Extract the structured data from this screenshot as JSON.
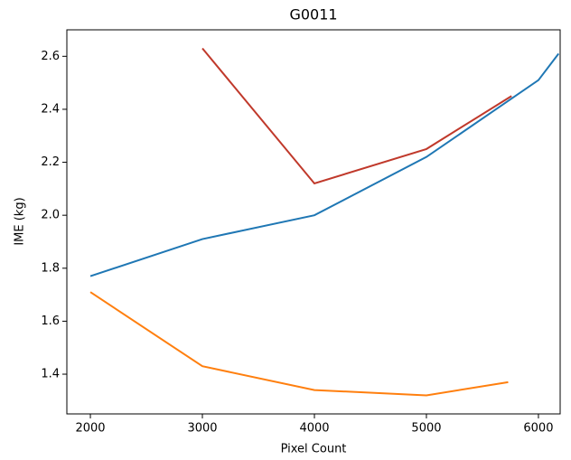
{
  "chart_data": {
    "type": "line",
    "title": "G0011",
    "x_label": "Pixel Count",
    "y_label": "IME (kg)",
    "series": [
      {
        "color": "#1f77b4",
        "x": [
          2000,
          3000,
          4000,
          5000,
          6000,
          6180
        ],
        "values": [
          1.77,
          1.91,
          2.0,
          2.22,
          2.51,
          2.61
        ]
      },
      {
        "color": "#ff7f0e",
        "x": [
          2000,
          3000,
          4000,
          5000,
          5730
        ],
        "values": [
          1.71,
          1.43,
          1.34,
          1.32,
          1.37
        ]
      },
      {
        "color": "#c0392b",
        "x": [
          3000,
          4000,
          5000,
          5760
        ],
        "values": [
          2.63,
          2.12,
          2.25,
          2.45
        ]
      }
    ],
    "xlim": [
      1790,
      6194
    ],
    "xticks": [
      2000,
      3000,
      4000,
      5000,
      6000
    ],
    "ylim": [
      1.25,
      2.7
    ],
    "yticks": [
      1.4,
      1.6,
      1.8,
      {
        "value": 2.0,
        "label": "2.0"
      },
      2.2,
      2.4,
      2.6
    ]
  }
}
